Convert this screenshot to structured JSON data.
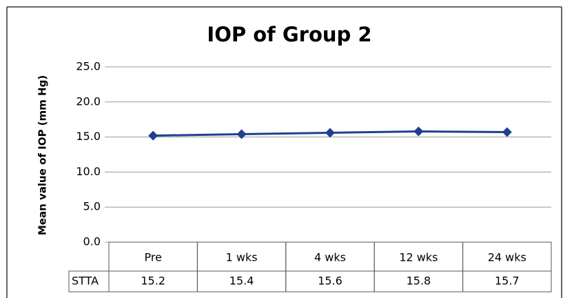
{
  "chart_data": {
    "type": "line",
    "title": "IOP of Group 2",
    "y_label": "Mean value of IOP (mm Hg)",
    "categories": [
      "Pre",
      "1 wks",
      "4 wks",
      "12 wks",
      "24 wks"
    ],
    "series": [
      {
        "name": "STTA",
        "color": "#1f3f8f",
        "values": [
          15.2,
          15.4,
          15.6,
          15.8,
          15.7
        ]
      }
    ],
    "ylim": [
      0,
      25
    ],
    "yticks": [
      {
        "value": 0,
        "label": "0.0"
      },
      {
        "value": 5,
        "label": "5.0"
      },
      {
        "value": 10,
        "label": "10.0"
      },
      {
        "value": 15,
        "label": "15.0"
      },
      {
        "value": 20,
        "label": "20.0"
      },
      {
        "value": 25,
        "label": "25.0"
      }
    ],
    "grid": true,
    "data_table": true
  }
}
